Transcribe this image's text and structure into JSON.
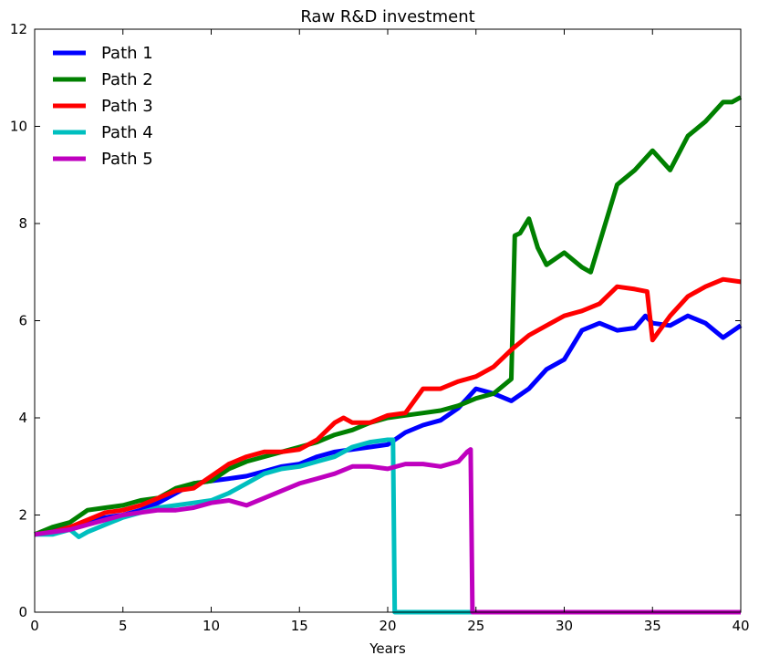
{
  "chart_data": {
    "type": "line",
    "title": "Raw R&D investment",
    "xlabel": "Years",
    "ylabel": "",
    "xlim": [
      0,
      40
    ],
    "ylim": [
      0,
      12
    ],
    "xticks": [
      0,
      5,
      10,
      15,
      20,
      25,
      30,
      35,
      40
    ],
    "yticks": [
      0,
      2,
      4,
      6,
      8,
      10,
      12
    ],
    "grid": false,
    "legend_position": "top-left",
    "series": [
      {
        "name": "Path 1",
        "color": "#0000ff",
        "x": [
          0,
          1,
          2,
          3,
          4,
          5,
          6,
          7,
          8,
          9,
          10,
          11,
          12,
          13,
          14,
          15,
          16,
          17,
          18,
          19,
          20,
          21,
          22,
          23,
          24,
          25,
          26,
          27,
          28,
          29,
          30,
          31,
          32,
          33,
          34,
          34.6,
          35,
          36,
          37,
          38,
          39,
          40
        ],
        "y": [
          1.6,
          1.7,
          1.75,
          1.85,
          1.95,
          2.0,
          2.1,
          2.25,
          2.45,
          2.65,
          2.7,
          2.75,
          2.8,
          2.9,
          3.0,
          3.05,
          3.2,
          3.3,
          3.35,
          3.4,
          3.45,
          3.7,
          3.85,
          3.95,
          4.2,
          4.6,
          4.5,
          4.35,
          4.6,
          5.0,
          5.2,
          5.8,
          5.95,
          5.8,
          5.85,
          6.1,
          5.95,
          5.9,
          6.1,
          5.95,
          5.65,
          5.9
        ]
      },
      {
        "name": "Path 2",
        "color": "#008000",
        "x": [
          0,
          1,
          2,
          3,
          4,
          5,
          6,
          7,
          8,
          9,
          10,
          11,
          12,
          13,
          14,
          15,
          16,
          17,
          18,
          19,
          20,
          21,
          22,
          23,
          24,
          25,
          26,
          27,
          27.2,
          27.5,
          28,
          28.5,
          29,
          30,
          31,
          31.5,
          32,
          33,
          34,
          35,
          36,
          37,
          38,
          39,
          39.5,
          40
        ],
        "y": [
          1.6,
          1.75,
          1.85,
          2.1,
          2.15,
          2.2,
          2.3,
          2.35,
          2.55,
          2.65,
          2.7,
          2.95,
          3.1,
          3.2,
          3.3,
          3.4,
          3.5,
          3.65,
          3.75,
          3.9,
          4.0,
          4.05,
          4.1,
          4.15,
          4.25,
          4.4,
          4.5,
          4.8,
          7.75,
          7.8,
          8.1,
          7.5,
          7.15,
          7.4,
          7.1,
          7.0,
          7.6,
          8.8,
          9.1,
          9.5,
          9.1,
          9.8,
          10.1,
          10.5,
          10.5,
          10.6
        ]
      },
      {
        "name": "Path 3",
        "color": "#ff0000",
        "x": [
          0,
          1,
          2,
          3,
          4,
          5,
          6,
          7,
          8,
          9,
          10,
          11,
          12,
          13,
          14,
          15,
          16,
          17,
          17.5,
          18,
          19,
          20,
          21,
          22,
          23,
          24,
          25,
          26,
          27,
          28,
          29,
          30,
          31,
          32,
          33,
          34,
          34.7,
          35,
          36,
          37,
          38,
          39,
          40
        ],
        "y": [
          1.6,
          1.65,
          1.75,
          1.9,
          2.05,
          2.1,
          2.2,
          2.35,
          2.5,
          2.55,
          2.8,
          3.05,
          3.2,
          3.3,
          3.3,
          3.35,
          3.55,
          3.9,
          4.0,
          3.9,
          3.9,
          4.05,
          4.1,
          4.6,
          4.6,
          4.75,
          4.85,
          5.05,
          5.4,
          5.7,
          5.9,
          6.1,
          6.2,
          6.35,
          6.7,
          6.65,
          6.6,
          5.6,
          6.1,
          6.5,
          6.7,
          6.85,
          6.8
        ]
      },
      {
        "name": "Path 4",
        "color": "#00bfbf",
        "x": [
          0,
          1,
          2,
          2.5,
          3,
          4,
          5,
          6,
          7,
          8,
          9,
          10,
          11,
          12,
          13,
          14,
          15,
          16,
          17,
          18,
          19,
          20,
          20.3,
          20.4,
          40
        ],
        "y": [
          1.6,
          1.6,
          1.7,
          1.55,
          1.65,
          1.8,
          1.95,
          2.05,
          2.15,
          2.2,
          2.25,
          2.3,
          2.45,
          2.65,
          2.85,
          2.95,
          3.0,
          3.1,
          3.2,
          3.4,
          3.5,
          3.55,
          3.55,
          0,
          0
        ]
      },
      {
        "name": "Path 5",
        "color": "#bf00bf",
        "x": [
          0,
          1,
          2,
          3,
          4,
          5,
          6,
          7,
          8,
          9,
          10,
          11,
          12,
          13,
          14,
          15,
          16,
          17,
          18,
          19,
          20,
          21,
          22,
          23,
          24,
          24.5,
          24.7,
          24.8,
          40
        ],
        "y": [
          1.6,
          1.65,
          1.7,
          1.8,
          1.9,
          2.0,
          2.05,
          2.1,
          2.1,
          2.15,
          2.25,
          2.3,
          2.2,
          2.35,
          2.5,
          2.65,
          2.75,
          2.85,
          3.0,
          3.0,
          2.95,
          3.05,
          3.05,
          3.0,
          3.1,
          3.3,
          3.35,
          0,
          0
        ]
      }
    ]
  }
}
